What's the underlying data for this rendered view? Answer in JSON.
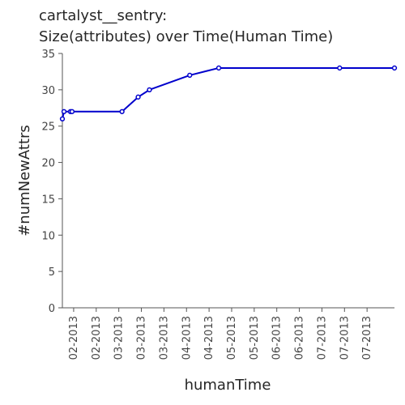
{
  "chart_data": {
    "type": "line",
    "title_line1": "cartalyst__sentry:",
    "title_line2": "Size(attributes) over Time(Human Time)",
    "xlabel": "humanTime",
    "ylabel": "#numNewAttrs",
    "ylim": [
      0,
      35
    ],
    "yticks": [
      0,
      5,
      10,
      15,
      20,
      25,
      30,
      35
    ],
    "xlim": [
      "2013-01-13",
      "2013-08-07"
    ],
    "xticks": [
      {
        "date": "2013-01-20",
        "label": "02-2013"
      },
      {
        "date": "2013-02-03",
        "label": "02-2013"
      },
      {
        "date": "2013-02-17",
        "label": "03-2013"
      },
      {
        "date": "2013-03-03",
        "label": "03-2013"
      },
      {
        "date": "2013-03-17",
        "label": "03-2013"
      },
      {
        "date": "2013-03-31",
        "label": "04-2013"
      },
      {
        "date": "2013-04-14",
        "label": "04-2013"
      },
      {
        "date": "2013-04-28",
        "label": "05-2013"
      },
      {
        "date": "2013-05-12",
        "label": "05-2013"
      },
      {
        "date": "2013-05-26",
        "label": "06-2013"
      },
      {
        "date": "2013-06-09",
        "label": "06-2013"
      },
      {
        "date": "2013-06-23",
        "label": "07-2013"
      },
      {
        "date": "2013-07-07",
        "label": "07-2013"
      },
      {
        "date": "2013-07-21",
        "label": "07-2013"
      }
    ],
    "grid": false,
    "series": [
      {
        "color": "#0000cc",
        "points": [
          {
            "x": "2013-01-13",
            "y": 26
          },
          {
            "x": "2013-01-14",
            "y": 27
          },
          {
            "x": "2013-01-18",
            "y": 27
          },
          {
            "x": "2013-01-19",
            "y": 27
          },
          {
            "x": "2013-02-19",
            "y": 27
          },
          {
            "x": "2013-03-01",
            "y": 29
          },
          {
            "x": "2013-03-08",
            "y": 30
          },
          {
            "x": "2013-04-02",
            "y": 32
          },
          {
            "x": "2013-04-20",
            "y": 33
          },
          {
            "x": "2013-07-04",
            "y": 33
          },
          {
            "x": "2013-08-07",
            "y": 33
          }
        ]
      }
    ]
  }
}
